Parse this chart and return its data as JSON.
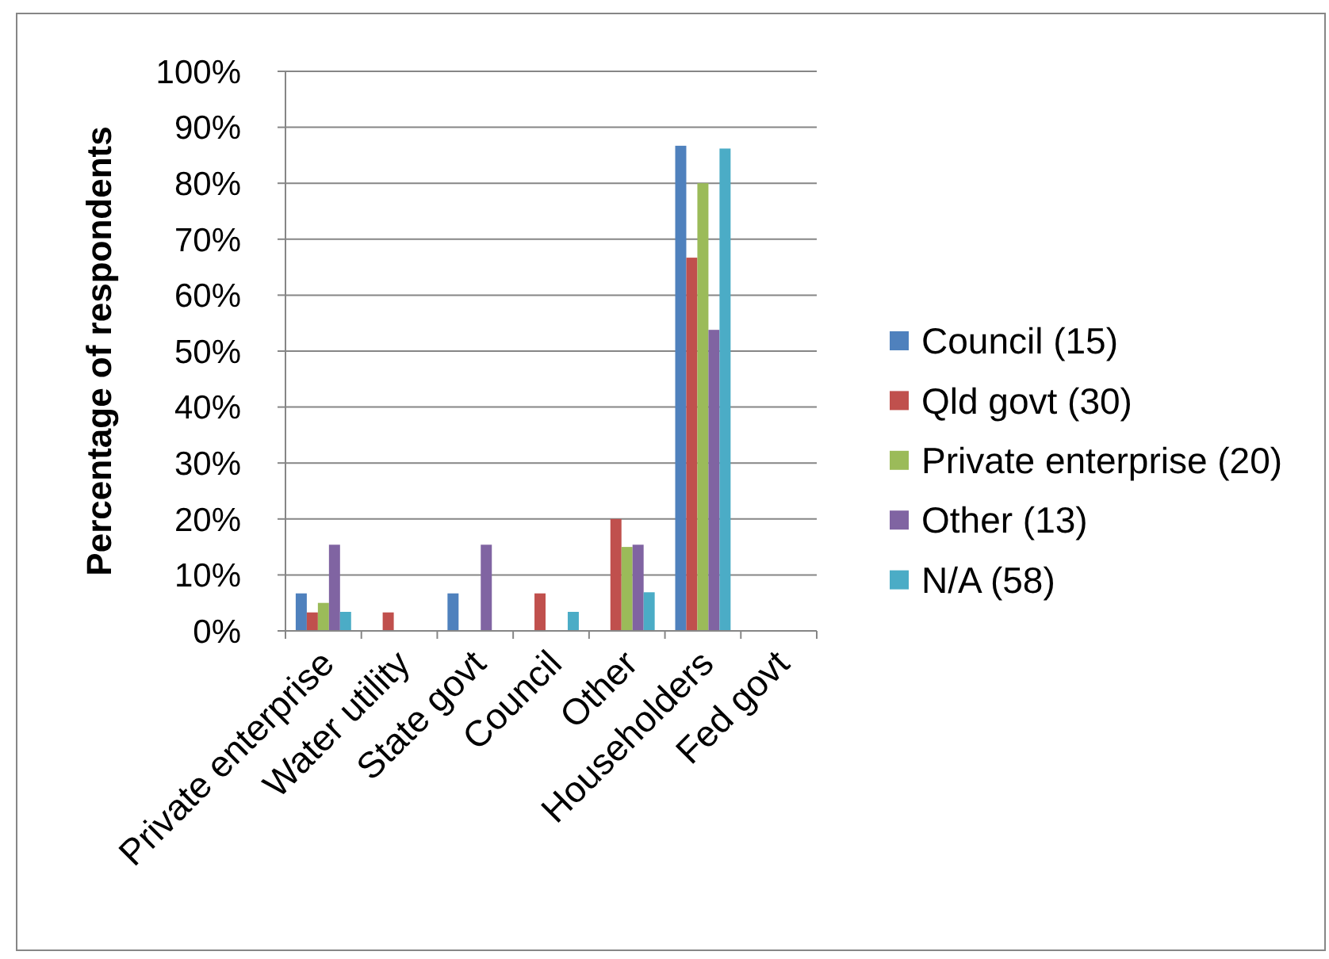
{
  "chart_data": {
    "type": "bar",
    "ylabel": "Percentage of respondents",
    "categories": [
      "Private enterprise",
      "Water utility",
      "State govt",
      "Council",
      "Other",
      "Householders",
      "Fed govt"
    ],
    "series": [
      {
        "name": "Council (15)",
        "color": "#4f81bd",
        "values": [
          6.7,
          null,
          6.7,
          null,
          null,
          86.7,
          null
        ]
      },
      {
        "name": "Qld govt (30)",
        "color": "#c0504d",
        "values": [
          3.3,
          3.3,
          null,
          6.7,
          20,
          66.7,
          null
        ]
      },
      {
        "name": "Private enterprise (20)",
        "color": "#9bbb59",
        "values": [
          5,
          null,
          null,
          null,
          15,
          80,
          null
        ]
      },
      {
        "name": "Other (13)",
        "color": "#8064a2",
        "values": [
          15.4,
          null,
          15.4,
          null,
          15.4,
          53.8,
          null
        ]
      },
      {
        "name": "N/A (58)",
        "color": "#4bacc6",
        "values": [
          3.4,
          null,
          null,
          3.4,
          6.9,
          86.2,
          null
        ]
      }
    ],
    "ylim": [
      0,
      100
    ],
    "yticks": [
      {
        "value": 0,
        "label": "0%"
      },
      {
        "value": 10,
        "label": "10%"
      },
      {
        "value": 20,
        "label": "20%"
      },
      {
        "value": 30,
        "label": "30%"
      },
      {
        "value": 40,
        "label": "40%"
      },
      {
        "value": 50,
        "label": "50%"
      },
      {
        "value": 60,
        "label": "60%"
      },
      {
        "value": 70,
        "label": "70%"
      },
      {
        "value": 80,
        "label": "80%"
      },
      {
        "value": 90,
        "label": "90%"
      },
      {
        "value": 100,
        "label": "100%"
      }
    ],
    "grid": "y",
    "legend": "right"
  }
}
